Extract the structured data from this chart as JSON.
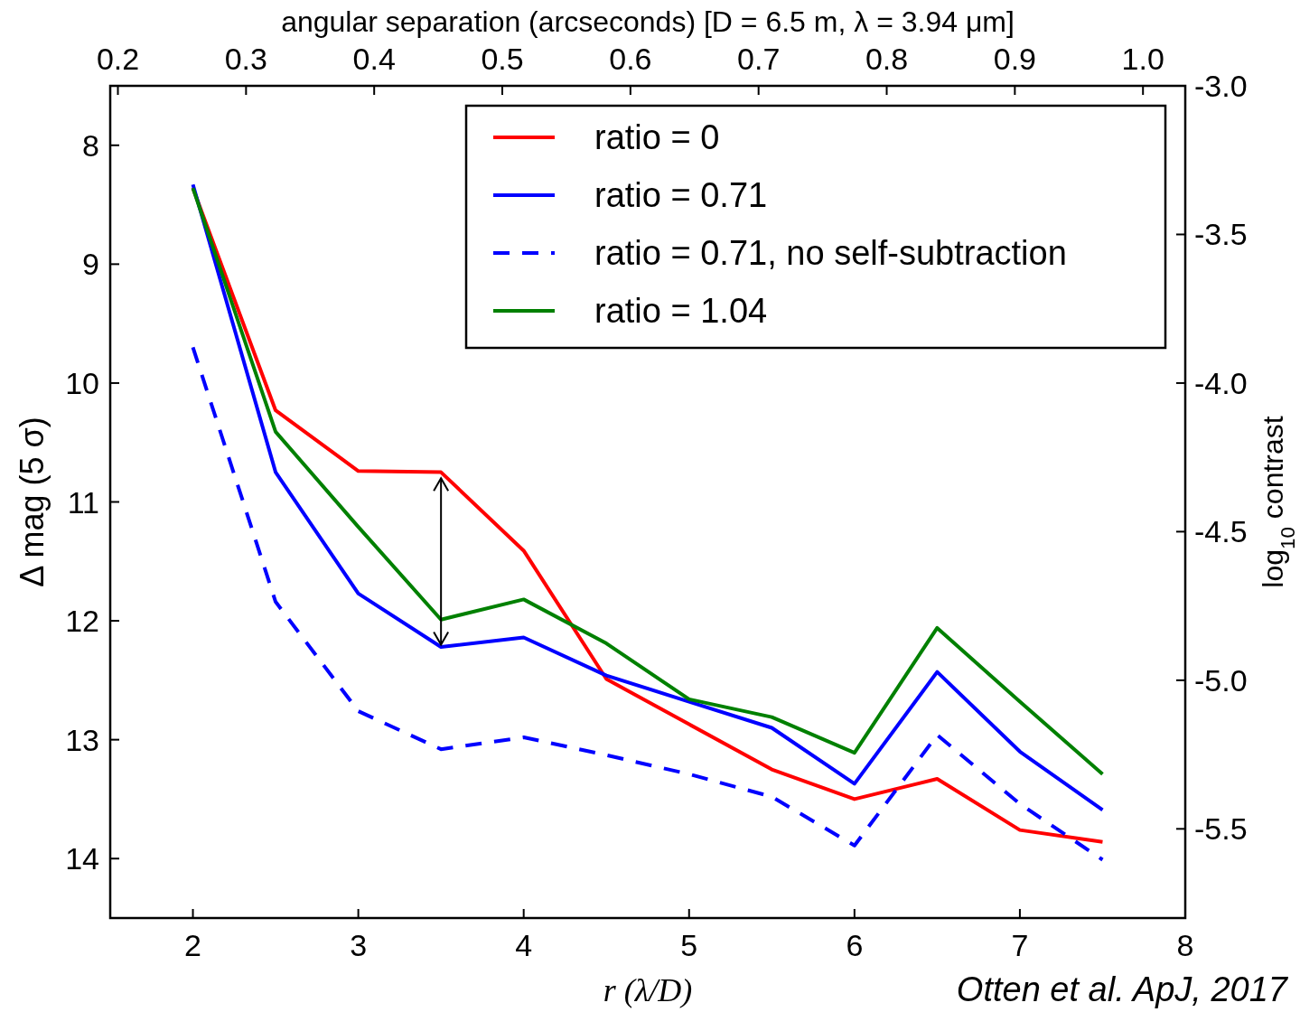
{
  "chart_data": {
    "type": "line",
    "xlabel": "r (λ/D)",
    "ylabel": "Δ mag (5 σ)",
    "y2label": "log$_{10}$ contrast",
    "x2label": "angular separation (arcseconds) [D = 6.5 m, λ = 3.94 μm]",
    "x": [
      2,
      2.5,
      3,
      3.5,
      4,
      4.5,
      5,
      5.5,
      6,
      6.5,
      7,
      7.5
    ],
    "series": [
      {
        "name": "ratio = 0",
        "color": "#ff0000",
        "line_style": "solid",
        "values": [
          8.36,
          10.23,
          10.74,
          10.75,
          11.41,
          12.49,
          12.87,
          13.25,
          13.5,
          13.33,
          13.76,
          13.86
        ]
      },
      {
        "name": "ratio = 0.71",
        "color": "#0000ff",
        "line_style": "solid",
        "values": [
          8.33,
          10.75,
          11.77,
          12.22,
          12.14,
          12.46,
          12.68,
          12.9,
          13.37,
          12.43,
          13.1,
          13.59
        ]
      },
      {
        "name": "ratio = 0.71, no self-subtraction",
        "color": "#0000ff",
        "line_style": "dashed",
        "values": [
          9.7,
          11.84,
          12.76,
          13.08,
          12.98,
          13.13,
          13.29,
          13.48,
          13.89,
          12.96,
          13.54,
          14.01
        ]
      },
      {
        "name": "ratio = 1.04",
        "color": "#008000",
        "line_style": "solid",
        "values": [
          8.36,
          10.41,
          11.21,
          11.99,
          11.82,
          12.19,
          12.66,
          12.81,
          13.11,
          12.06,
          12.68,
          13.29
        ]
      }
    ],
    "xlim": [
      1.5,
      8
    ],
    "xticks": [
      2,
      3,
      4,
      5,
      6,
      7,
      8
    ],
    "ylim": [
      14.5,
      7.5
    ],
    "yticks": [
      8,
      9,
      10,
      11,
      12,
      13,
      14
    ],
    "y2lim": [
      -5.8,
      -3.0
    ],
    "y2ticks": [
      {
        "value": -3.0,
        "label": "-3.0"
      },
      -3.5,
      {
        "value": -4.0,
        "label": "-4.0"
      },
      -4.5,
      {
        "value": -5.0,
        "label": "-5.0"
      },
      -5.5
    ],
    "x2lim": [
      0.194,
      1.033
    ],
    "x2ticks": [
      0.2,
      0.3,
      0.4,
      0.5,
      0.6,
      0.7,
      0.8,
      0.9,
      {
        "value": 1.0,
        "label": "1.0"
      }
    ],
    "annotations": [
      "Otten et al. ApJ, 2017"
    ],
    "legend": "top right",
    "grid": false
  }
}
